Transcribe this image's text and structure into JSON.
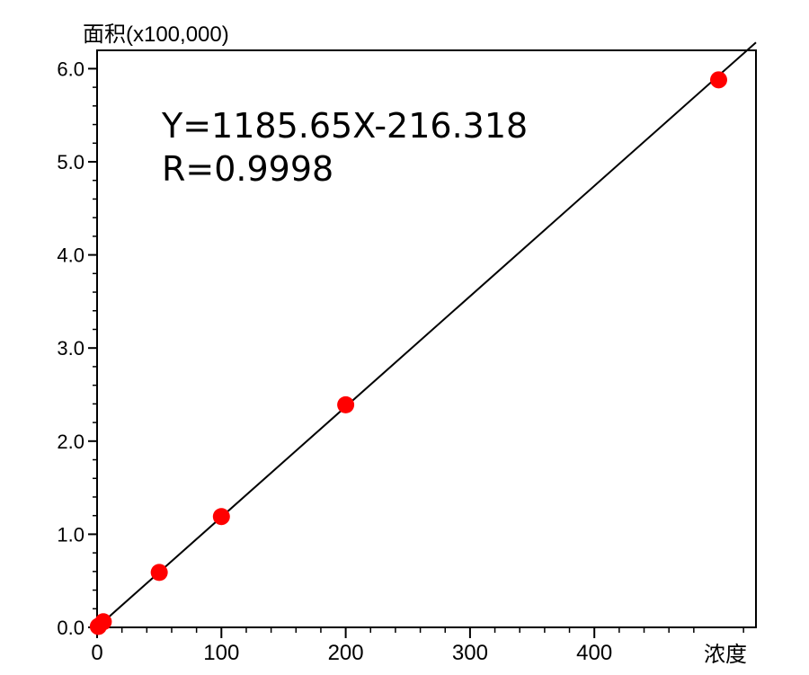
{
  "chart_data": {
    "type": "scatter",
    "ylabel": "面积(x100,000)",
    "xlabel": "浓度",
    "xlim": [
      0,
      530
    ],
    "ylim": [
      0,
      6.15
    ],
    "x_ticks": [
      0,
      100,
      200,
      300,
      400
    ],
    "y_ticks": [
      "0.0",
      "1.0",
      "2.0",
      "3.0",
      "4.0",
      "5.0",
      "6.0"
    ],
    "grid": false,
    "legend": "none",
    "series": [
      {
        "points": [
          {
            "x": 1,
            "y": 0.01
          },
          {
            "x": 5,
            "y": 0.06
          },
          {
            "x": 50,
            "y": 0.59
          },
          {
            "x": 100,
            "y": 1.19
          },
          {
            "x": 200,
            "y": 2.39
          },
          {
            "x": 500,
            "y": 5.88
          }
        ],
        "color": "#ff0000"
      }
    ],
    "fit_line": {
      "slope_per_1e5": 0.0118565,
      "intercept_per_1e5": -0.00216318,
      "equation": "Y=1185.65X-216.318",
      "r_text": "R=0.9998",
      "color": "#000000"
    }
  }
}
